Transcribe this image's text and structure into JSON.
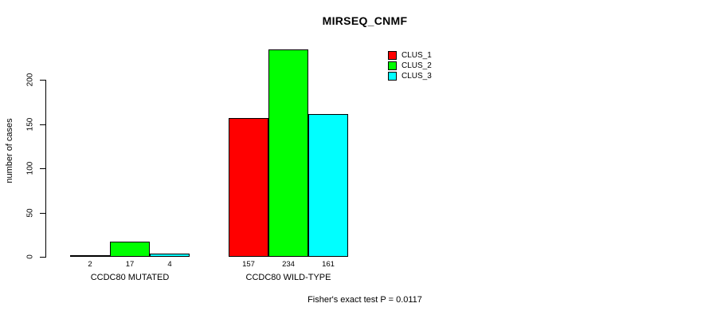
{
  "chart_data": {
    "type": "bar",
    "title": "MIRSEQ_CNMF",
    "ylabel": "number of cases",
    "xlabel": "",
    "categories": [
      "CCDC80 MUTATED",
      "CCDC80 WILD-TYPE"
    ],
    "series": [
      {
        "name": "CLUS_1",
        "color": "#ff0000",
        "values": [
          2,
          157
        ]
      },
      {
        "name": "CLUS_2",
        "color": "#00ff00",
        "values": [
          17,
          234
        ]
      },
      {
        "name": "CLUS_3",
        "color": "#00ffff",
        "values": [
          4,
          161
        ]
      }
    ],
    "yticks": [
      0,
      50,
      100,
      150,
      200
    ],
    "ylim": [
      0,
      240
    ],
    "grid": false,
    "legend_position": "top-right",
    "bar_border_color": "#000000",
    "annotation": "Fisher's exact test P = 0.0117"
  }
}
